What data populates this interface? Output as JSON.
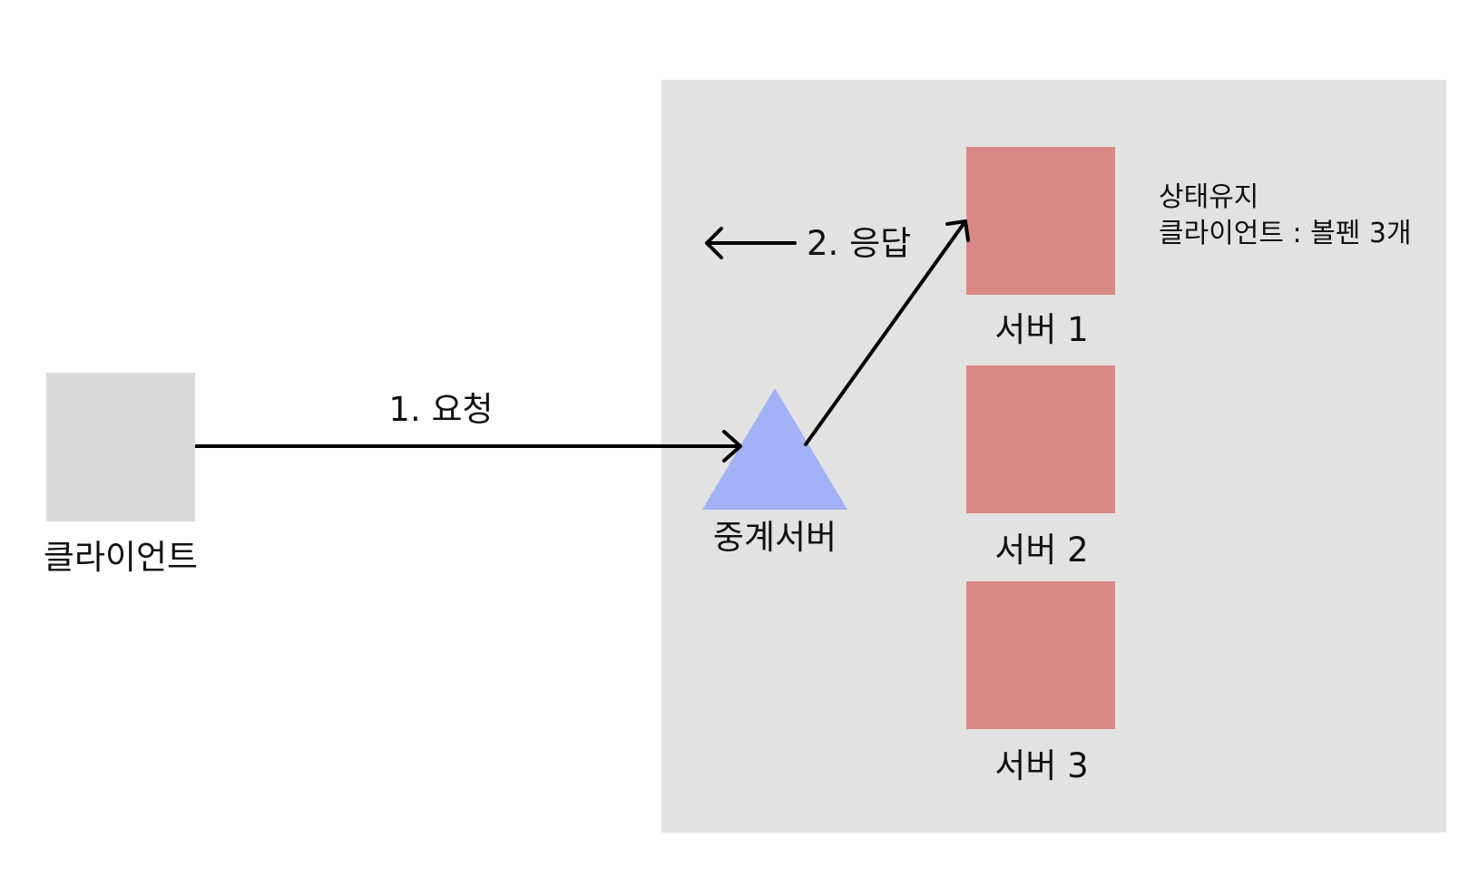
{
  "client": {
    "label": "클라이언트"
  },
  "relay_server": {
    "label": "중계서버"
  },
  "servers": [
    {
      "label": "서버 1"
    },
    {
      "label": "서버 2"
    },
    {
      "label": "서버 3"
    }
  ],
  "arrows": {
    "request_label": "1. 요청",
    "response_label": "2. 응답"
  },
  "note": {
    "line1": "상태유지",
    "line2": "클라이언트 : 볼펜 3개"
  },
  "colors": {
    "server_zone": "#e2e2e2",
    "client_box": "#d9d9d9",
    "relay_triangle": "#a3b1f6",
    "server_box": "#da8886",
    "arrow": "#000000"
  }
}
